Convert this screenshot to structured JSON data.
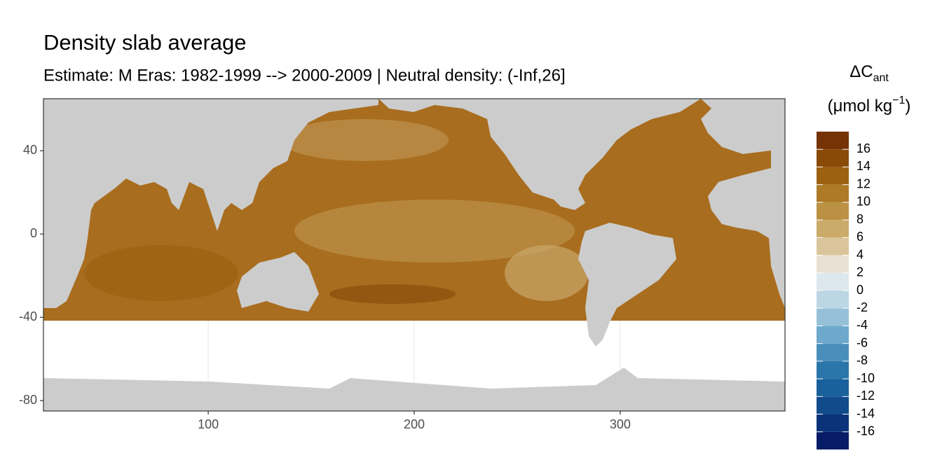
{
  "chart_data": {
    "type": "raster-map",
    "title": "Density slab average",
    "subtitle": "Estimate: M Eras: 1982-1999 --> 2000-2009 | Neutral density: (-Inf,26]",
    "xlim": [
      20,
      380
    ],
    "ylim": [
      -85,
      65
    ],
    "xticks": [
      100,
      200,
      300
    ],
    "yticks": [
      40,
      0,
      -40,
      -80
    ],
    "grid": true,
    "legend": {
      "title": "ΔC",
      "title_subscript": "ant",
      "unit": "(μmol kg",
      "unit_superscript": "−1",
      "unit_close": ")",
      "breaks": [
        -18,
        -16,
        -14,
        -12,
        -10,
        -8,
        -6,
        -4,
        -2,
        0,
        2,
        4,
        6,
        8,
        10,
        12,
        14,
        16,
        18
      ],
      "ticks": [
        16,
        14,
        12,
        10,
        8,
        6,
        4,
        2,
        0,
        -2,
        -4,
        -6,
        -8,
        -10,
        -12,
        -14,
        -16
      ],
      "colors": [
        "#061c66",
        "#0b3379",
        "#124b8c",
        "#19609c",
        "#2a76ab",
        "#4a8fbb",
        "#6ea9cb",
        "#95c0d8",
        "#bcd6e4",
        "#dde8ee",
        "#e9e2d4",
        "#dac59a",
        "#cbab6a",
        "#bb9143",
        "#ad7a26",
        "#9c6212",
        "#894a07",
        "#763306",
        "#621c04"
      ]
    }
  }
}
